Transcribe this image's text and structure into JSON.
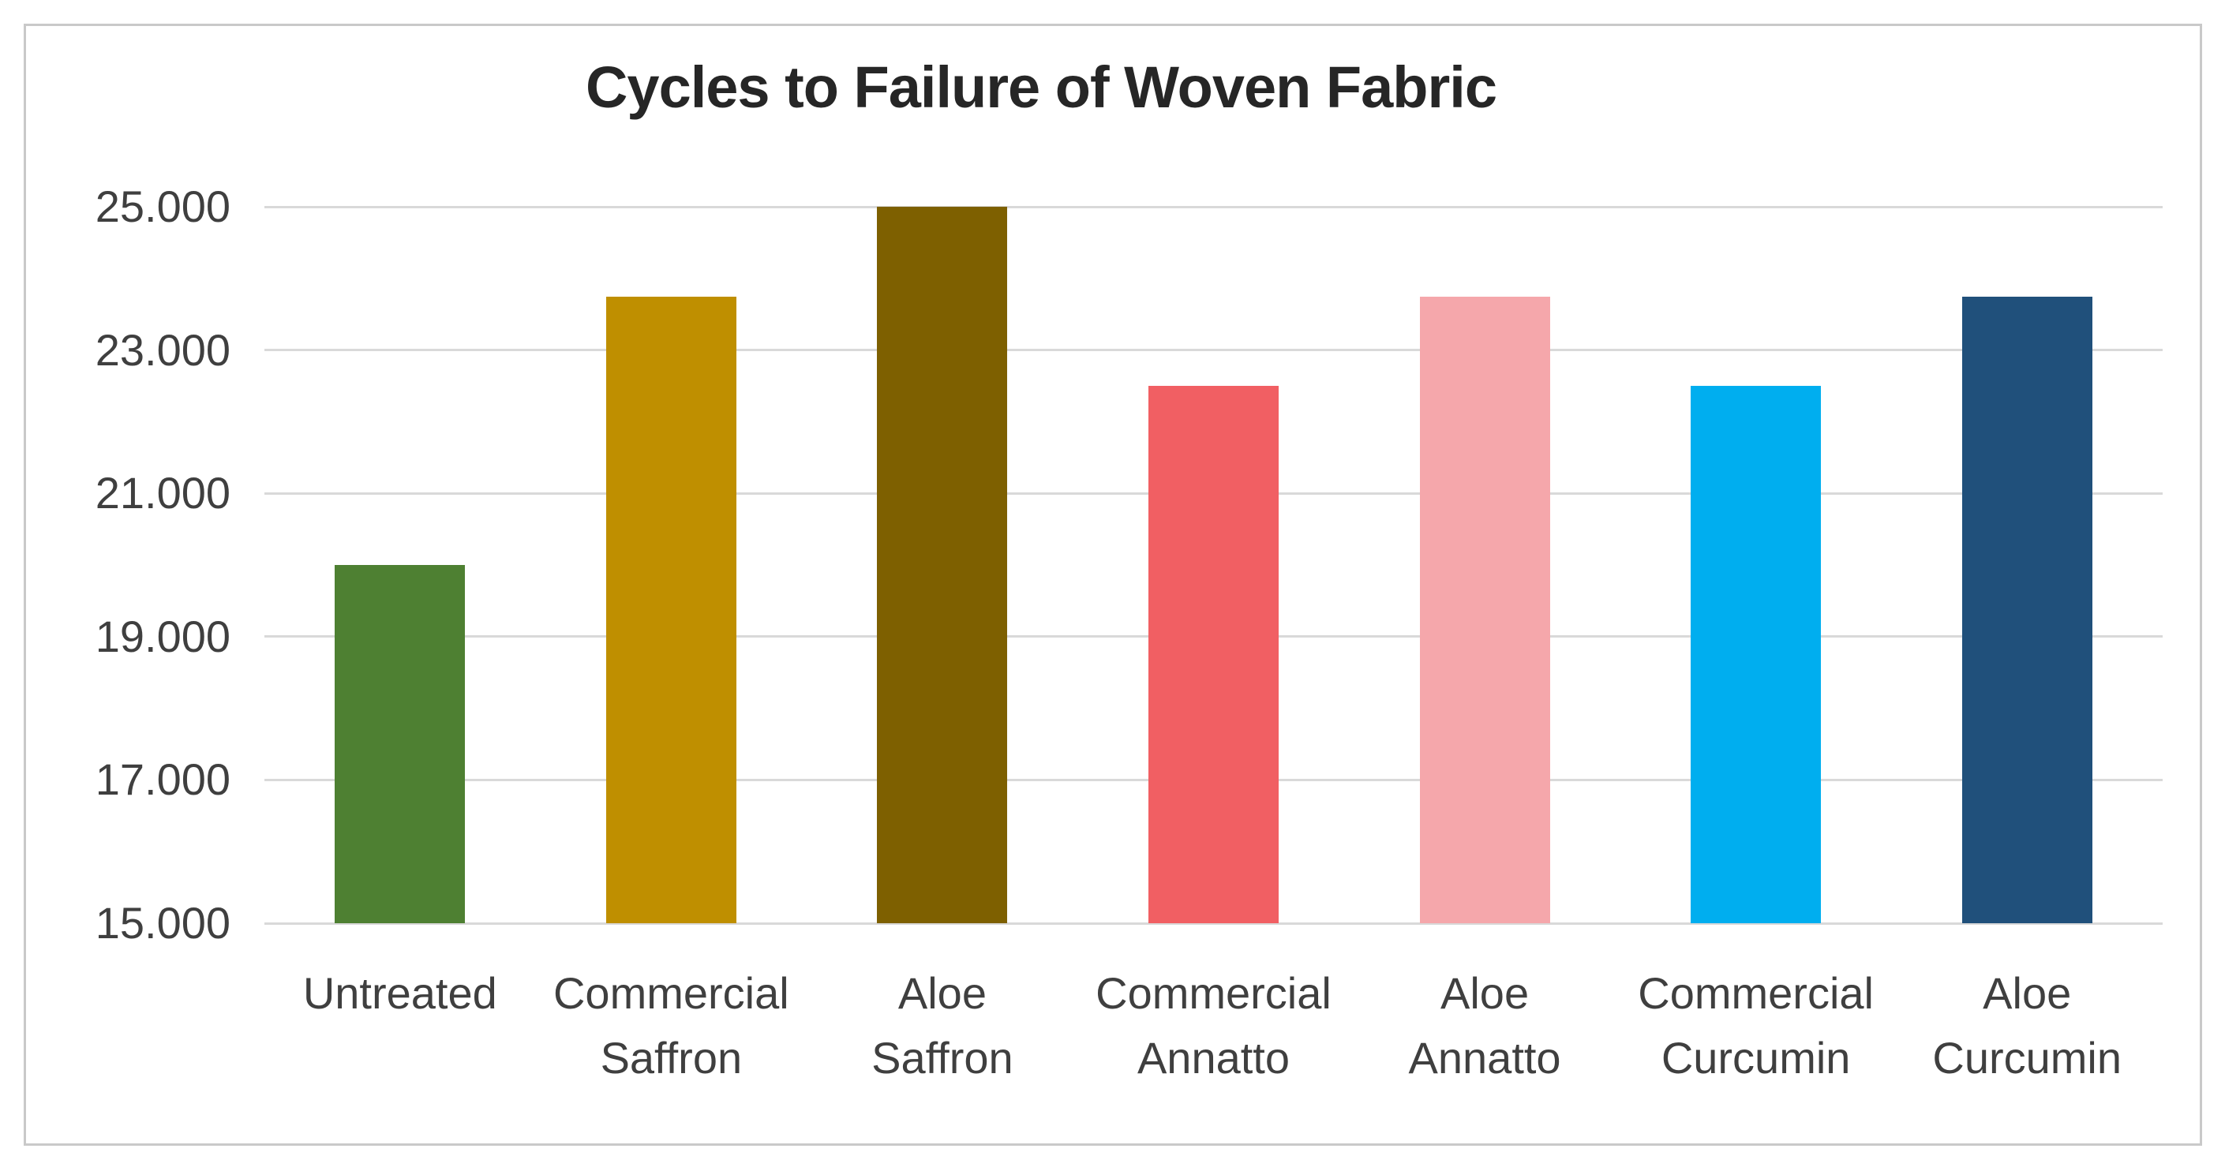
{
  "chart_data": {
    "type": "bar",
    "title": "Cycles to Failure of Woven Fabric",
    "categories": [
      "Untreated",
      "Commercial Saffron",
      "Aloe Saffron",
      "Commercial Annatto",
      "Aloe Annatto",
      "Commercial Curcumin",
      "Aloe Curcumin"
    ],
    "category_label_lines": [
      [
        "Untreated"
      ],
      [
        "Commercial",
        "Saffron"
      ],
      [
        "Aloe",
        "Saffron"
      ],
      [
        "Commercial",
        "Annatto"
      ],
      [
        "Aloe",
        "Annatto"
      ],
      [
        "Commercial",
        "Curcumin"
      ],
      [
        "Aloe",
        "Curcumin"
      ]
    ],
    "values": [
      20000,
      23750,
      25000,
      22500,
      23750,
      22500,
      23750
    ],
    "bar_colors": [
      "#4E8032",
      "#BF8F00",
      "#7E6000",
      "#F15F63",
      "#F5A7AB",
      "#00AEEF",
      "#20507B"
    ],
    "ylim": [
      15000,
      25000
    ],
    "ytick_step": 2000,
    "ytick_labels": [
      "15.000",
      "17.000",
      "19.000",
      "21.000",
      "23.000",
      "25.000"
    ],
    "grid": true,
    "legend": "none",
    "xlabel": "",
    "ylabel": ""
  },
  "theme": {
    "background": "#FFFFFF",
    "frame_border_color": "#C9C9C9",
    "grid_color": "#D9D9D9",
    "title_color": "#262626",
    "axis_text_color": "#3F3F3F"
  }
}
